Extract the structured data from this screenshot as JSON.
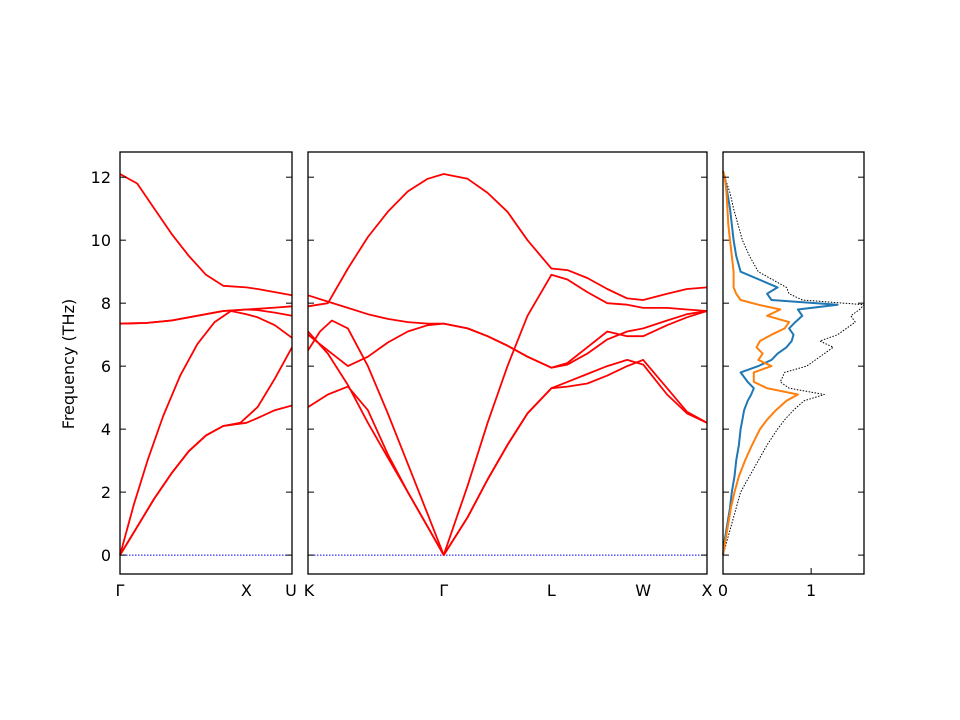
{
  "chart_data": {
    "type": "line",
    "ylabel": "Frequency (THz)",
    "ylim": [
      -0.6,
      12.8
    ],
    "yticks": [
      0,
      2,
      4,
      6,
      8,
      10,
      12
    ],
    "grid": false,
    "colors": {
      "bands": "#ff0000",
      "zero_line": "#0000ff",
      "dos_total": "#000000",
      "dos_species_1": "#1f77b4",
      "dos_species_2": "#ff7f0e"
    },
    "band_panels": [
      {
        "path": "Γ-X-U",
        "xlim": [
          0,
          1
        ],
        "kpoint_labels": [
          {
            "x": 0,
            "label": "Γ"
          },
          {
            "x": 0.735,
            "label": "X"
          },
          {
            "x": 1,
            "label": "U"
          }
        ],
        "series": [
          {
            "x": [
              0,
              0.1,
              0.2,
              0.3,
              0.4,
              0.5,
              0.6,
              0.735,
              0.8,
              0.9,
              1.0
            ],
            "y": [
              12.1,
              11.8,
              11.0,
              10.2,
              9.5,
              8.9,
              8.55,
              8.5,
              8.45,
              8.35,
              8.25
            ]
          },
          {
            "x": [
              0,
              0.15,
              0.3,
              0.45,
              0.6,
              0.735,
              0.8,
              0.9,
              1.0
            ],
            "y": [
              7.35,
              7.37,
              7.45,
              7.6,
              7.75,
              7.8,
              7.82,
              7.86,
              7.9
            ]
          },
          {
            "x": [
              0,
              0.15,
              0.3,
              0.45,
              0.6,
              0.735,
              0.8,
              0.9,
              1.0
            ],
            "y": [
              7.35,
              7.37,
              7.45,
              7.6,
              7.75,
              7.8,
              7.78,
              7.7,
              7.6
            ]
          },
          {
            "x": [
              0,
              0.08,
              0.16,
              0.25,
              0.35,
              0.45,
              0.55,
              0.645,
              0.735,
              0.8,
              0.9,
              1.0
            ],
            "y": [
              0,
              1.6,
              3.0,
              4.4,
              5.7,
              6.7,
              7.4,
              7.75,
              7.65,
              7.55,
              7.3,
              6.9
            ]
          },
          {
            "x": [
              0,
              0.1,
              0.2,
              0.3,
              0.4,
              0.5,
              0.6,
              0.735,
              0.8,
              0.9,
              1.0
            ],
            "y": [
              0,
              0.9,
              1.8,
              2.6,
              3.3,
              3.8,
              4.1,
              4.2,
              4.35,
              4.6,
              4.75
            ]
          },
          {
            "x": [
              0,
              0.1,
              0.2,
              0.3,
              0.4,
              0.5,
              0.6,
              0.7,
              0.8,
              0.9,
              1.0
            ],
            "y": [
              0,
              0.9,
              1.8,
              2.6,
              3.3,
              3.8,
              4.1,
              4.2,
              4.7,
              5.6,
              6.6
            ]
          }
        ]
      },
      {
        "path": "K-Γ-L-W-X",
        "xlim": [
          0,
          1
        ],
        "kpoint_labels": [
          {
            "x": 0,
            "label": "K"
          },
          {
            "x": 0.34,
            "label": "Γ"
          },
          {
            "x": 0.61,
            "label": "L"
          },
          {
            "x": 0.84,
            "label": "W"
          },
          {
            "x": 1,
            "label": "X"
          }
        ],
        "series": [
          {
            "x": [
              0,
              0.05,
              0.1,
              0.15,
              0.2,
              0.25,
              0.3,
              0.34,
              0.4,
              0.45,
              0.5,
              0.55,
              0.61,
              0.65,
              0.7,
              0.75,
              0.8,
              0.84,
              0.9,
              0.95,
              1.0
            ],
            "y": [
              7.9,
              8.0,
              9.1,
              10.1,
              10.9,
              11.55,
              11.95,
              12.1,
              11.95,
              11.5,
              10.9,
              10.0,
              9.1,
              9.05,
              8.8,
              8.45,
              8.15,
              8.1,
              8.3,
              8.45,
              8.5
            ]
          },
          {
            "x": [
              0,
              0.05,
              0.1,
              0.15,
              0.2,
              0.25,
              0.3,
              0.34,
              0.4,
              0.45,
              0.5,
              0.55,
              0.61,
              0.65,
              0.7,
              0.75,
              0.8,
              0.84,
              0.9,
              0.95,
              1.0
            ],
            "y": [
              8.25,
              8.05,
              7.85,
              7.65,
              7.5,
              7.4,
              7.35,
              7.35,
              7.2,
              6.95,
              6.65,
              6.3,
              5.95,
              6.1,
              6.6,
              7.1,
              6.95,
              6.95,
              7.3,
              7.55,
              7.75
            ]
          },
          {
            "x": [
              0,
              0.05,
              0.1,
              0.15,
              0.2,
              0.25,
              0.3,
              0.34,
              0.4,
              0.45,
              0.5,
              0.55,
              0.61,
              0.65,
              0.7,
              0.75,
              0.8,
              0.84,
              0.9,
              0.95,
              1.0
            ],
            "y": [
              7.0,
              6.5,
              6.0,
              6.3,
              6.75,
              7.1,
              7.3,
              7.35,
              7.2,
              6.95,
              6.65,
              6.3,
              5.95,
              6.05,
              6.4,
              6.85,
              7.1,
              7.2,
              7.45,
              7.65,
              7.75
            ]
          },
          {
            "x": [
              0,
              0.03,
              0.06,
              0.1,
              0.15,
              0.2,
              0.25,
              0.3,
              0.34,
              0.4,
              0.45,
              0.5,
              0.55,
              0.61,
              0.65,
              0.7,
              0.75,
              0.8,
              0.84,
              0.9,
              0.95,
              1.0
            ],
            "y": [
              6.5,
              7.1,
              7.45,
              7.2,
              6.0,
              4.5,
              2.9,
              1.3,
              0,
              2.2,
              4.2,
              6.0,
              7.6,
              8.9,
              8.75,
              8.35,
              8.0,
              7.95,
              7.85,
              7.85,
              7.8,
              7.75
            ]
          },
          {
            "x": [
              0,
              0.05,
              0.1,
              0.15,
              0.2,
              0.25,
              0.3,
              0.34,
              0.4,
              0.45,
              0.5,
              0.55,
              0.61,
              0.65,
              0.7,
              0.75,
              0.8,
              0.84,
              0.9,
              0.95,
              1.0
            ],
            "y": [
              7.1,
              6.4,
              5.4,
              4.2,
              3.1,
              2.0,
              0.9,
              0,
              1.2,
              2.4,
              3.5,
              4.5,
              5.3,
              5.35,
              5.45,
              5.7,
              6.0,
              6.2,
              5.3,
              4.55,
              4.2
            ]
          },
          {
            "x": [
              0,
              0.05,
              0.1,
              0.15,
              0.2,
              0.25,
              0.3,
              0.34,
              0.4,
              0.45,
              0.5,
              0.55,
              0.61,
              0.65,
              0.7,
              0.75,
              0.8,
              0.84,
              0.9,
              0.95,
              1.0
            ],
            "y": [
              4.7,
              5.1,
              5.35,
              4.6,
              3.2,
              2.0,
              0.9,
              0,
              1.2,
              2.4,
              3.5,
              4.5,
              5.3,
              5.5,
              5.75,
              6.0,
              6.2,
              6.05,
              5.1,
              4.5,
              4.2
            ]
          }
        ]
      }
    ],
    "dos_panel": {
      "xlim": [
        0,
        1.6
      ],
      "xticks": [
        0,
        1
      ],
      "series": [
        {
          "freq": [
            0,
            0.5,
            1.0,
            1.5,
            2.0,
            2.5,
            3.0,
            3.5,
            4.0,
            4.3,
            4.6,
            4.9,
            5.1,
            5.3,
            5.5,
            5.8,
            6.0,
            6.2,
            6.4,
            6.6,
            6.8,
            7.0,
            7.2,
            7.4,
            7.6,
            7.8,
            7.95,
            8.1,
            8.3,
            8.5,
            9.0,
            9.5,
            10.0,
            10.5,
            11.0,
            11.5,
            12.0,
            12.2
          ],
          "dos": [
            0,
            0.05,
            0.1,
            0.15,
            0.2,
            0.3,
            0.4,
            0.5,
            0.62,
            0.7,
            0.8,
            0.92,
            1.15,
            0.75,
            0.65,
            0.7,
            0.95,
            1.05,
            1.15,
            1.25,
            1.1,
            1.3,
            1.4,
            1.5,
            1.45,
            1.55,
            1.6,
            0.9,
            0.75,
            0.72,
            0.4,
            0.3,
            0.22,
            0.17,
            0.12,
            0.08,
            0.02,
            0
          ]
        },
        {
          "freq": [
            0,
            0.5,
            1.0,
            1.5,
            2.0,
            2.5,
            3.0,
            3.5,
            4.0,
            4.3,
            4.6,
            4.9,
            5.1,
            5.3,
            5.5,
            5.8,
            6.0,
            6.2,
            6.4,
            6.6,
            6.8,
            7.0,
            7.2,
            7.4,
            7.6,
            7.8,
            7.95,
            8.1,
            8.3,
            8.5,
            9.0,
            9.5,
            10.0,
            10.5,
            11.0,
            11.5,
            12.0,
            12.2
          ],
          "dos": [
            0,
            0.02,
            0.05,
            0.08,
            0.1,
            0.13,
            0.15,
            0.18,
            0.2,
            0.22,
            0.24,
            0.28,
            0.32,
            0.35,
            0.28,
            0.2,
            0.4,
            0.55,
            0.62,
            0.72,
            0.78,
            0.8,
            0.75,
            0.82,
            0.9,
            0.85,
            1.3,
            0.55,
            0.5,
            0.62,
            0.2,
            0.15,
            0.12,
            0.1,
            0.08,
            0.05,
            0.02,
            0
          ]
        },
        {
          "freq": [
            0,
            0.5,
            1.0,
            1.5,
            2.0,
            2.5,
            3.0,
            3.5,
            4.0,
            4.3,
            4.6,
            4.9,
            5.1,
            5.3,
            5.5,
            5.8,
            6.0,
            6.2,
            6.4,
            6.6,
            6.8,
            7.0,
            7.2,
            7.4,
            7.6,
            7.8,
            7.95,
            8.1,
            8.3,
            8.5,
            9.0,
            9.5,
            10.0,
            10.5,
            11.0,
            11.5,
            12.0,
            12.2
          ],
          "dos": [
            0,
            0.03,
            0.06,
            0.09,
            0.13,
            0.18,
            0.25,
            0.33,
            0.42,
            0.5,
            0.6,
            0.72,
            0.85,
            0.5,
            0.35,
            0.35,
            0.55,
            0.4,
            0.45,
            0.38,
            0.42,
            0.55,
            0.7,
            0.75,
            0.5,
            0.65,
            0.4,
            0.2,
            0.15,
            0.12,
            0.12,
            0.1,
            0.08,
            0.06,
            0.05,
            0.04,
            0.02,
            0
          ]
        }
      ]
    }
  }
}
